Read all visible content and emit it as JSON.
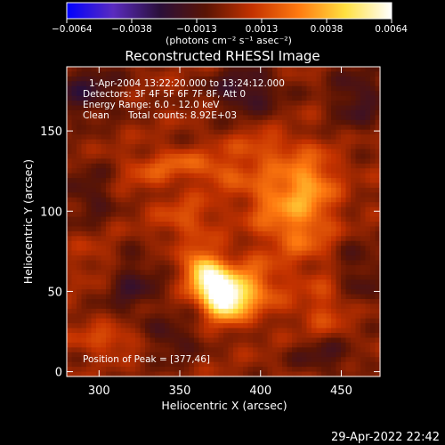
{
  "chart_data": {
    "type": "heatmap",
    "title": "Reconstructed RHESSI Image",
    "xlabel": "Heliocentric X (arcsec)",
    "ylabel": "Heliocentric Y (arcsec)",
    "xlim": [
      280,
      474
    ],
    "ylim": [
      -3,
      190
    ],
    "x_ticks": [
      300,
      350,
      400,
      450
    ],
    "y_ticks": [
      0,
      50,
      100,
      150
    ],
    "colorbar": {
      "label": "(photons cm⁻² s⁻¹ asec⁻²)",
      "range": [
        -0.0064,
        0.0064
      ],
      "ticks": [
        "−0.0064",
        "−0.0038",
        "−0.0013",
        "0.0013",
        "0.0038",
        "0.0064"
      ],
      "colors": [
        "#0000ff",
        "#5a2bbf",
        "#2a0f3a",
        "#5a1404",
        "#c43200",
        "#ff7a10",
        "#ffe040",
        "#ffffff"
      ]
    },
    "annotations": {
      "time_range": "1-Apr-2004 13:22:20.000 to 13:24:12.000",
      "detectors": "Detectors: 3F 4F 5F 6F 7F 8F, Att 0",
      "energy": "Energy Range: 6.0 - 12.0 keV",
      "algorithm": "Clean",
      "counts": "Total counts: 8.92E+03",
      "peak": "Position of Peak = [377,46]"
    },
    "sources": [
      {
        "x": 377,
        "y": 46,
        "amp": 0.0064,
        "sx": 9,
        "sy": 9
      },
      {
        "x": 365,
        "y": 62,
        "amp": 0.0052,
        "sx": 8,
        "sy": 9
      },
      {
        "x": 392,
        "y": 52,
        "amp": 0.003,
        "sx": 14,
        "sy": 12
      },
      {
        "x": 430,
        "y": 118,
        "amp": 0.003,
        "sx": 12,
        "sy": 14
      },
      {
        "x": 425,
        "y": 88,
        "amp": 0.0022,
        "sx": 14,
        "sy": 14
      },
      {
        "x": 405,
        "y": 110,
        "amp": 0.002,
        "sx": 12,
        "sy": 16
      },
      {
        "x": 375,
        "y": 125,
        "amp": 0.0018,
        "sx": 12,
        "sy": 8
      },
      {
        "x": 355,
        "y": 95,
        "amp": 0.0016,
        "sx": 14,
        "sy": 10
      },
      {
        "x": 330,
        "y": 125,
        "amp": 0.0013,
        "sx": 12,
        "sy": 8
      },
      {
        "x": 305,
        "y": 20,
        "amp": 0.0017,
        "sx": 14,
        "sy": 6
      },
      {
        "x": 440,
        "y": 40,
        "amp": 0.0014,
        "sx": 12,
        "sy": 14
      },
      {
        "x": 300,
        "y": 70,
        "amp": 0.0008,
        "sx": 12,
        "sy": 10
      },
      {
        "x": 350,
        "y": 130,
        "amp": 0.0015,
        "sx": 10,
        "sy": 6
      },
      {
        "x": 400,
        "y": 140,
        "amp": 0.0014,
        "sx": 14,
        "sy": 6
      },
      {
        "x": 290,
        "y": 175,
        "amp": -0.002,
        "sx": 16,
        "sy": 12
      },
      {
        "x": 390,
        "y": 175,
        "amp": -0.0022,
        "sx": 16,
        "sy": 10
      },
      {
        "x": 460,
        "y": 170,
        "amp": -0.0018,
        "sx": 12,
        "sy": 14
      },
      {
        "x": 320,
        "y": 55,
        "amp": -0.0018,
        "sx": 12,
        "sy": 14
      },
      {
        "x": 345,
        "y": 20,
        "amp": -0.0015,
        "sx": 12,
        "sy": 10
      },
      {
        "x": 460,
        "y": 60,
        "amp": -0.0014,
        "sx": 10,
        "sy": 16
      },
      {
        "x": 295,
        "y": 110,
        "amp": -0.0014,
        "sx": 10,
        "sy": 14
      },
      {
        "x": 440,
        "y": 10,
        "amp": -0.0016,
        "sx": 14,
        "sy": 8
      }
    ]
  },
  "footer": {
    "timestamp": "29-Apr-2022 22:42"
  }
}
